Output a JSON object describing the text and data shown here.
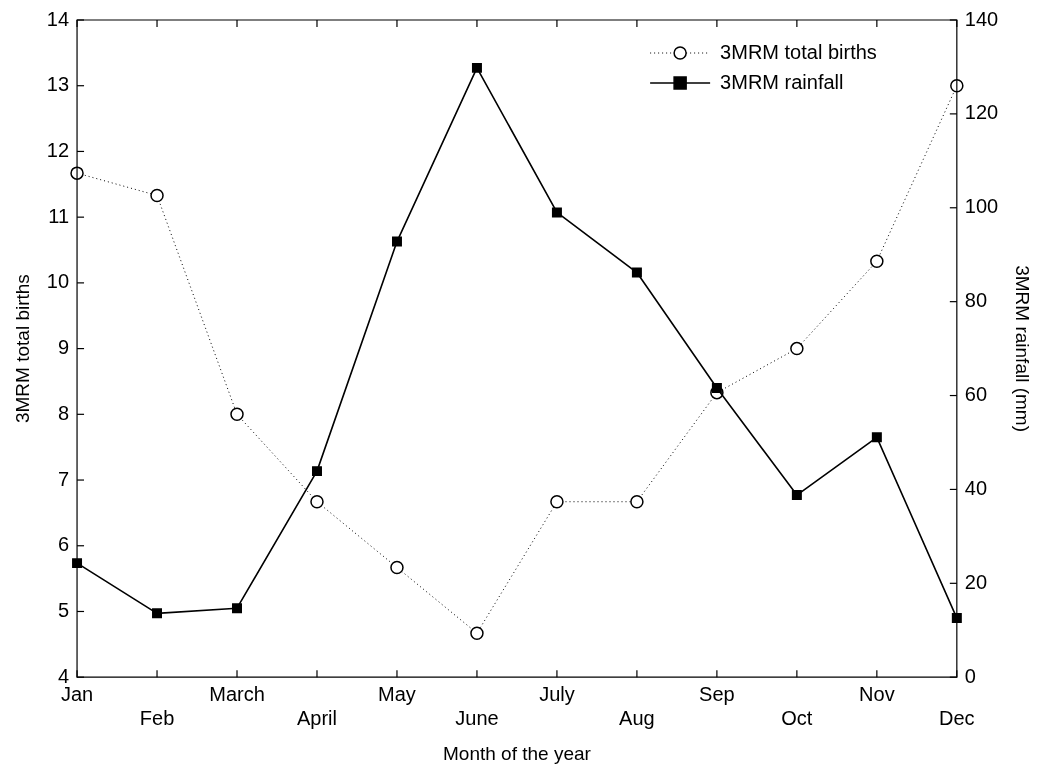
{
  "chart_data": {
    "type": "line",
    "categories": [
      "Jan",
      "Feb",
      "March",
      "April",
      "May",
      "June",
      "July",
      "Aug",
      "Sep",
      "Oct",
      "Nov",
      "Dec"
    ],
    "series": [
      {
        "name": "3MRM total births",
        "color": "#000000",
        "marker": "circle",
        "line_style": "dotted",
        "values": [
          11.67,
          11.33,
          8,
          6.67,
          5.67,
          4.67,
          6.67,
          6.67,
          8.33,
          9,
          10.33,
          13
        ]
      },
      {
        "name": "3MRM rainfall",
        "color": "#000000",
        "marker": "square",
        "line_style": "solid",
        "axis": "y2",
        "values": [
          24.3,
          13.6,
          14.7,
          43.9,
          92.8,
          129.8,
          99.0,
          86.2,
          61.6,
          38.8,
          51.1,
          12.6
        ]
      }
    ],
    "xlabel": "Month of the year",
    "ylabel": "3MRM total births",
    "y2label": "3MRM rainfall (mm)",
    "ylim": [
      4,
      14
    ],
    "yticks": [
      4,
      5,
      6,
      7,
      8,
      9,
      10,
      11,
      12,
      13,
      14
    ],
    "y2lim": [
      0,
      140
    ],
    "y2ticks": [
      0,
      20,
      40,
      60,
      80,
      100,
      120,
      140
    ],
    "grid": false,
    "legend": "top right"
  }
}
